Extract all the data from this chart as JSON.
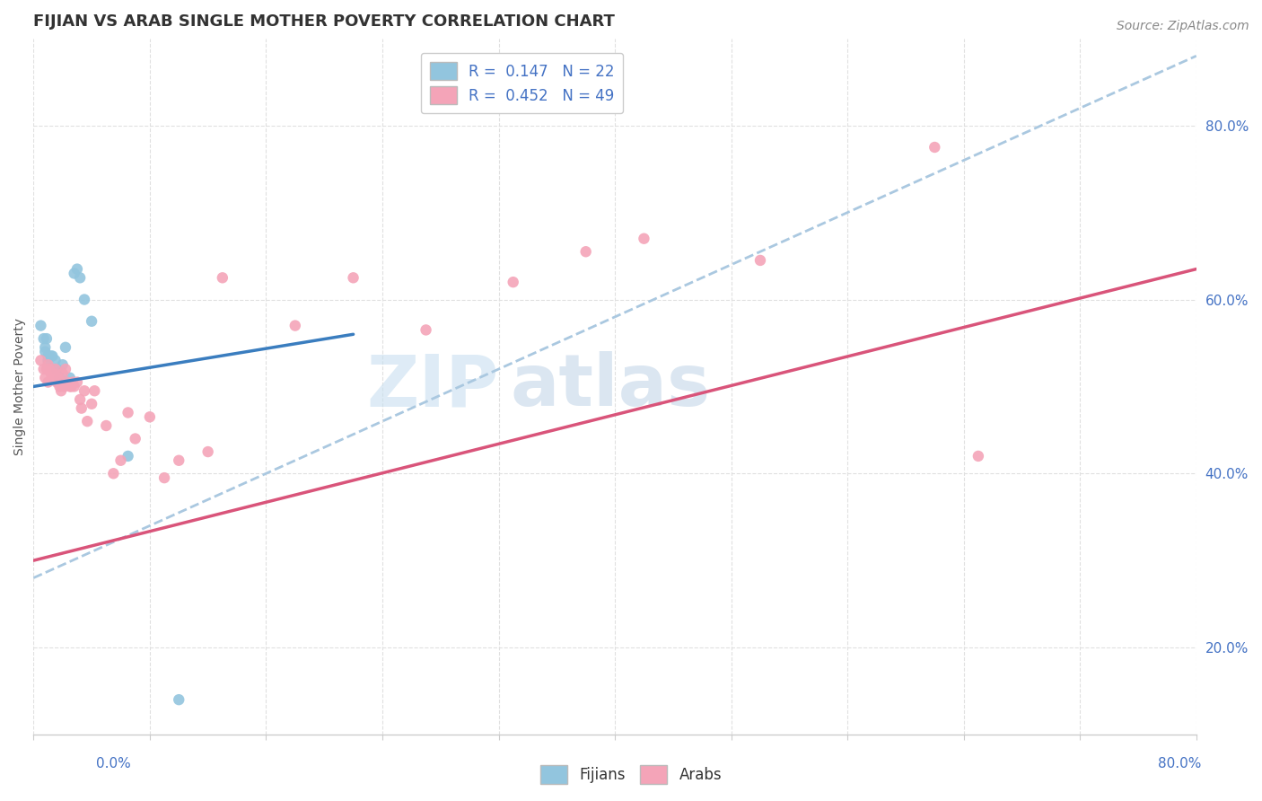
{
  "title": "FIJIAN VS ARAB SINGLE MOTHER POVERTY CORRELATION CHART",
  "source": "Source: ZipAtlas.com",
  "ylabel": "Single Mother Poverty",
  "fijian_R": "0.147",
  "fijian_N": "22",
  "arab_R": "0.452",
  "arab_N": "49",
  "fijian_color": "#92c5de",
  "arab_color": "#f4a4b8",
  "fijian_line_color": "#3a7dbf",
  "arab_line_color": "#d9547a",
  "dash_line_color": "#aac8e0",
  "background_color": "#ffffff",
  "grid_color": "#e0e0e0",
  "tick_color": "#4472c4",
  "xlim": [
    0.0,
    0.8
  ],
  "ylim": [
    0.1,
    0.9
  ],
  "yticks": [
    0.2,
    0.4,
    0.6,
    0.8
  ],
  "ytick_labels": [
    "20.0%",
    "40.0%",
    "60.0%",
    "80.0%"
  ],
  "fijian_points_x": [
    0.005,
    0.007,
    0.008,
    0.008,
    0.009,
    0.01,
    0.01,
    0.012,
    0.013,
    0.015,
    0.016,
    0.018,
    0.02,
    0.022,
    0.025,
    0.028,
    0.03,
    0.032,
    0.035,
    0.04,
    0.065,
    0.1
  ],
  "fijian_points_y": [
    0.57,
    0.555,
    0.54,
    0.545,
    0.555,
    0.535,
    0.53,
    0.535,
    0.535,
    0.53,
    0.52,
    0.51,
    0.525,
    0.545,
    0.51,
    0.63,
    0.635,
    0.625,
    0.6,
    0.575,
    0.42,
    0.14
  ],
  "arab_points_x": [
    0.005,
    0.007,
    0.008,
    0.009,
    0.01,
    0.01,
    0.011,
    0.012,
    0.013,
    0.014,
    0.015,
    0.016,
    0.017,
    0.018,
    0.019,
    0.02,
    0.021,
    0.022,
    0.023,
    0.025,
    0.026,
    0.027,
    0.028,
    0.03,
    0.032,
    0.033,
    0.035,
    0.037,
    0.04,
    0.042,
    0.05,
    0.055,
    0.06,
    0.065,
    0.07,
    0.08,
    0.09,
    0.1,
    0.12,
    0.13,
    0.18,
    0.22,
    0.27,
    0.33,
    0.38,
    0.42,
    0.5,
    0.62,
    0.65
  ],
  "arab_points_y": [
    0.53,
    0.52,
    0.51,
    0.52,
    0.525,
    0.505,
    0.52,
    0.515,
    0.51,
    0.515,
    0.52,
    0.505,
    0.51,
    0.5,
    0.495,
    0.515,
    0.5,
    0.52,
    0.505,
    0.5,
    0.5,
    0.505,
    0.5,
    0.505,
    0.485,
    0.475,
    0.495,
    0.46,
    0.48,
    0.495,
    0.455,
    0.4,
    0.415,
    0.47,
    0.44,
    0.465,
    0.395,
    0.415,
    0.425,
    0.625,
    0.57,
    0.625,
    0.565,
    0.62,
    0.655,
    0.67,
    0.645,
    0.775,
    0.42
  ],
  "fijian_line_x": [
    0.0,
    0.22
  ],
  "fijian_line_y": [
    0.5,
    0.56
  ],
  "arab_line_x": [
    0.0,
    0.8
  ],
  "arab_line_y": [
    0.3,
    0.635
  ],
  "dash_line_x": [
    0.0,
    0.8
  ],
  "dash_line_y": [
    0.28,
    0.88
  ],
  "title_fontsize": 13,
  "axis_label_fontsize": 10,
  "tick_fontsize": 11,
  "legend_fontsize": 12,
  "source_fontsize": 10
}
